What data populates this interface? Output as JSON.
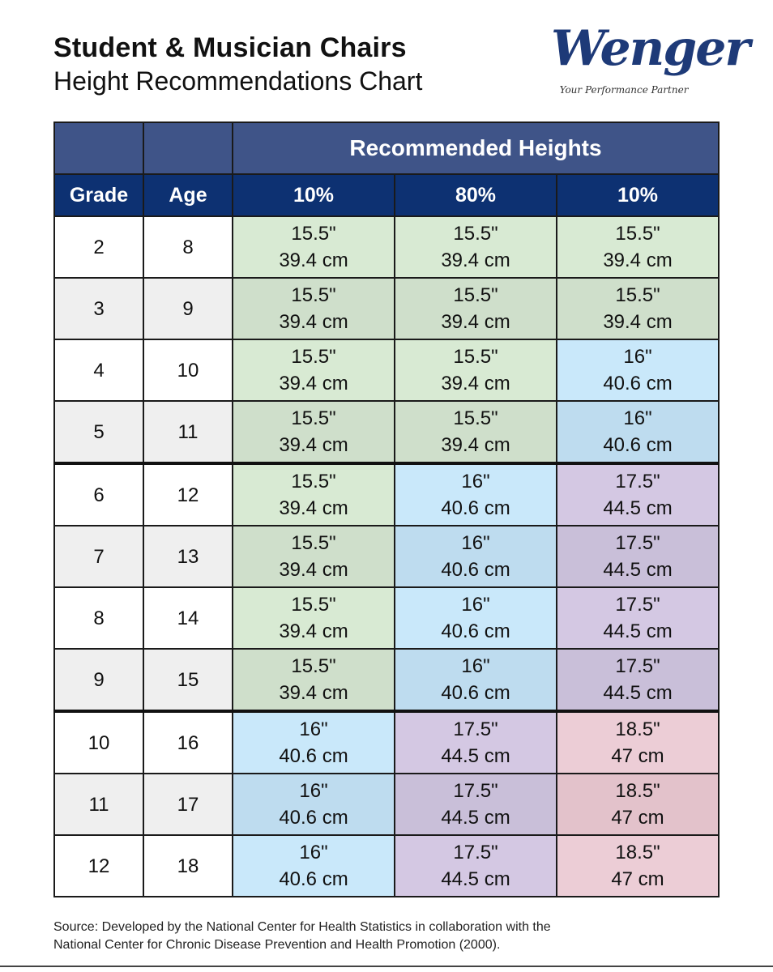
{
  "header": {
    "title": "Student & Musician Chairs",
    "subtitle": "Height Recommendations Chart"
  },
  "logo": {
    "brand": "Wenger",
    "tagline": "Your Performance Partner"
  },
  "table": {
    "group_header": "Recommended Heights",
    "columns": [
      "Grade",
      "Age",
      "10%",
      "80%",
      "10%"
    ],
    "rows": [
      {
        "grade": "2",
        "age": "8",
        "cells": [
          [
            "15.5\"",
            "39.4 cm"
          ],
          [
            "15.5\"",
            "39.4 cm"
          ],
          [
            "15.5\"",
            "39.4 cm"
          ]
        ]
      },
      {
        "grade": "3",
        "age": "9",
        "cells": [
          [
            "15.5\"",
            "39.4 cm"
          ],
          [
            "15.5\"",
            "39.4 cm"
          ],
          [
            "15.5\"",
            "39.4 cm"
          ]
        ]
      },
      {
        "grade": "4",
        "age": "10",
        "cells": [
          [
            "15.5\"",
            "39.4 cm"
          ],
          [
            "15.5\"",
            "39.4 cm"
          ],
          [
            "16\"",
            "40.6 cm"
          ]
        ]
      },
      {
        "grade": "5",
        "age": "11",
        "cells": [
          [
            "15.5\"",
            "39.4 cm"
          ],
          [
            "15.5\"",
            "39.4 cm"
          ],
          [
            "16\"",
            "40.6 cm"
          ]
        ]
      },
      {
        "grade": "6",
        "age": "12",
        "cells": [
          [
            "15.5\"",
            "39.4 cm"
          ],
          [
            "16\"",
            "40.6 cm"
          ],
          [
            "17.5\"",
            "44.5 cm"
          ]
        ]
      },
      {
        "grade": "7",
        "age": "13",
        "cells": [
          [
            "15.5\"",
            "39.4 cm"
          ],
          [
            "16\"",
            "40.6 cm"
          ],
          [
            "17.5\"",
            "44.5 cm"
          ]
        ]
      },
      {
        "grade": "8",
        "age": "14",
        "cells": [
          [
            "15.5\"",
            "39.4 cm"
          ],
          [
            "16\"",
            "40.6 cm"
          ],
          [
            "17.5\"",
            "44.5 cm"
          ]
        ]
      },
      {
        "grade": "9",
        "age": "15",
        "cells": [
          [
            "15.5\"",
            "39.4 cm"
          ],
          [
            "16\"",
            "40.6 cm"
          ],
          [
            "17.5\"",
            "44.5 cm"
          ]
        ]
      },
      {
        "grade": "10",
        "age": "16",
        "cells": [
          [
            "16\"",
            "40.6 cm"
          ],
          [
            "17.5\"",
            "44.5 cm"
          ],
          [
            "18.5\"",
            "47 cm"
          ]
        ]
      },
      {
        "grade": "11",
        "age": "17",
        "cells": [
          [
            "16\"",
            "40.6 cm"
          ],
          [
            "17.5\"",
            "44.5 cm"
          ],
          [
            "18.5\"",
            "47 cm"
          ]
        ]
      },
      {
        "grade": "12",
        "age": "18",
        "cells": [
          [
            "16\"",
            "40.6 cm"
          ],
          [
            "17.5\"",
            "44.5 cm"
          ],
          [
            "18.5\"",
            "47 cm"
          ]
        ]
      }
    ],
    "height_colors": {
      "15.5\"": "#d8ead3",
      "16\"": "#c9e8fa",
      "17.5\"": "#d4c8e3",
      "18.5\"": "#eccdd6"
    },
    "header_colors": {
      "group": "#3f5488",
      "columns": "#0d3172"
    }
  },
  "footer": {
    "source_line1": "Source: Developed by the National Center for Health Statistics in collaboration with the",
    "source_line2": "National Center for Chronic Disease Prevention and Health Promotion (2000)."
  }
}
